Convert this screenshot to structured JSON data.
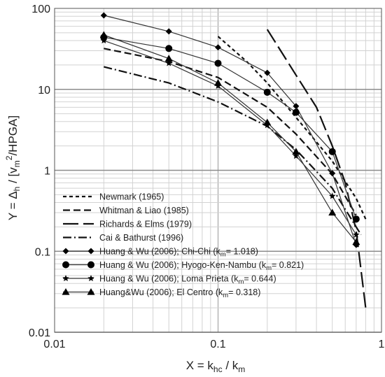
{
  "chart_data": {
    "type": "line",
    "xscale": "log",
    "yscale": "log",
    "xlim": [
      0.01,
      1
    ],
    "ylim": [
      0.01,
      100
    ],
    "x_ticks": [
      "0.01",
      "0.1",
      "1"
    ],
    "y_ticks": [
      "0.01",
      "0.1",
      "1",
      "10",
      "100"
    ],
    "grid": true,
    "legend_position": "bottom-left",
    "xlabel": {
      "main": "X = k",
      "sub": "hc",
      "mid": " / k",
      "sub2": "m"
    },
    "ylabel": {
      "p1": "Y = Δ",
      "s1": "h",
      "p2": " / [v",
      "s2": "m",
      "sup": "2",
      "p3": "/HPGA]"
    },
    "series": [
      {
        "name": "Newmark (1965)",
        "style": "short-dash",
        "marker": "none",
        "x": [
          0.1,
          0.15,
          0.2,
          0.3,
          0.5,
          0.7,
          0.8
        ],
        "y": [
          45,
          22,
          12,
          4.5,
          1.3,
          0.45,
          0.25
        ]
      },
      {
        "name": "Whitman & Liao (1985)",
        "style": "medium-dash",
        "marker": "none",
        "x": [
          0.02,
          0.05,
          0.1,
          0.2,
          0.3,
          0.5,
          0.7
        ],
        "y": [
          32,
          22,
          14,
          6,
          2.8,
          0.9,
          0.28
        ]
      },
      {
        "name": "Richards & Elms (1979)",
        "style": "long-dash",
        "marker": "none",
        "x": [
          0.2,
          0.3,
          0.4,
          0.5,
          0.6,
          0.7,
          0.8
        ],
        "y": [
          55,
          15,
          6,
          2,
          0.7,
          0.18,
          0.02
        ]
      },
      {
        "name": "Cai & Bathurst (1996)",
        "style": "dash-dot",
        "marker": "none",
        "x": [
          0.02,
          0.05,
          0.1,
          0.2,
          0.3,
          0.5,
          0.7,
          0.75
        ],
        "y": [
          19,
          12,
          7,
          3.5,
          1.8,
          0.6,
          0.2,
          0.16
        ]
      },
      {
        "name": "Huang & Wu (2006); Chi-Chi (k",
        "name_sub": "m",
        "name_tail": "= 1.018)",
        "style": "solid",
        "marker": "diamond",
        "x": [
          0.02,
          0.05,
          0.1,
          0.2,
          0.3,
          0.5,
          0.7
        ],
        "y": [
          82,
          52,
          33,
          16,
          6.2,
          0.92,
          0.12
        ]
      },
      {
        "name": "Huang & Wu (2006); Hyogo-Ken-Nambu (k",
        "name_sub": "m",
        "name_tail": "= 0.821)",
        "style": "solid",
        "marker": "circle",
        "x": [
          0.02,
          0.05,
          0.1,
          0.2,
          0.3,
          0.5,
          0.7
        ],
        "y": [
          44,
          32,
          21,
          9.2,
          5.2,
          1.7,
          0.25
        ]
      },
      {
        "name": "Huang & Wu (2006); Loma Prieta (k",
        "name_sub": "m",
        "name_tail": "= 0.644)",
        "style": "solid",
        "marker": "star",
        "x": [
          0.02,
          0.05,
          0.1,
          0.2,
          0.3,
          0.5,
          0.7
        ],
        "y": [
          40,
          21,
          11,
          3.6,
          1.5,
          0.48,
          0.16
        ]
      },
      {
        "name": "Huang&Wu (2006); El Centro (k",
        "name_sub": "m",
        "name_tail": "= 0.318)",
        "style": "solid",
        "marker": "triangle",
        "x": [
          0.02,
          0.05,
          0.1,
          0.2,
          0.3,
          0.5,
          0.7
        ],
        "y": [
          47,
          24,
          12,
          3.9,
          1.7,
          0.3,
          0.13
        ]
      }
    ]
  }
}
